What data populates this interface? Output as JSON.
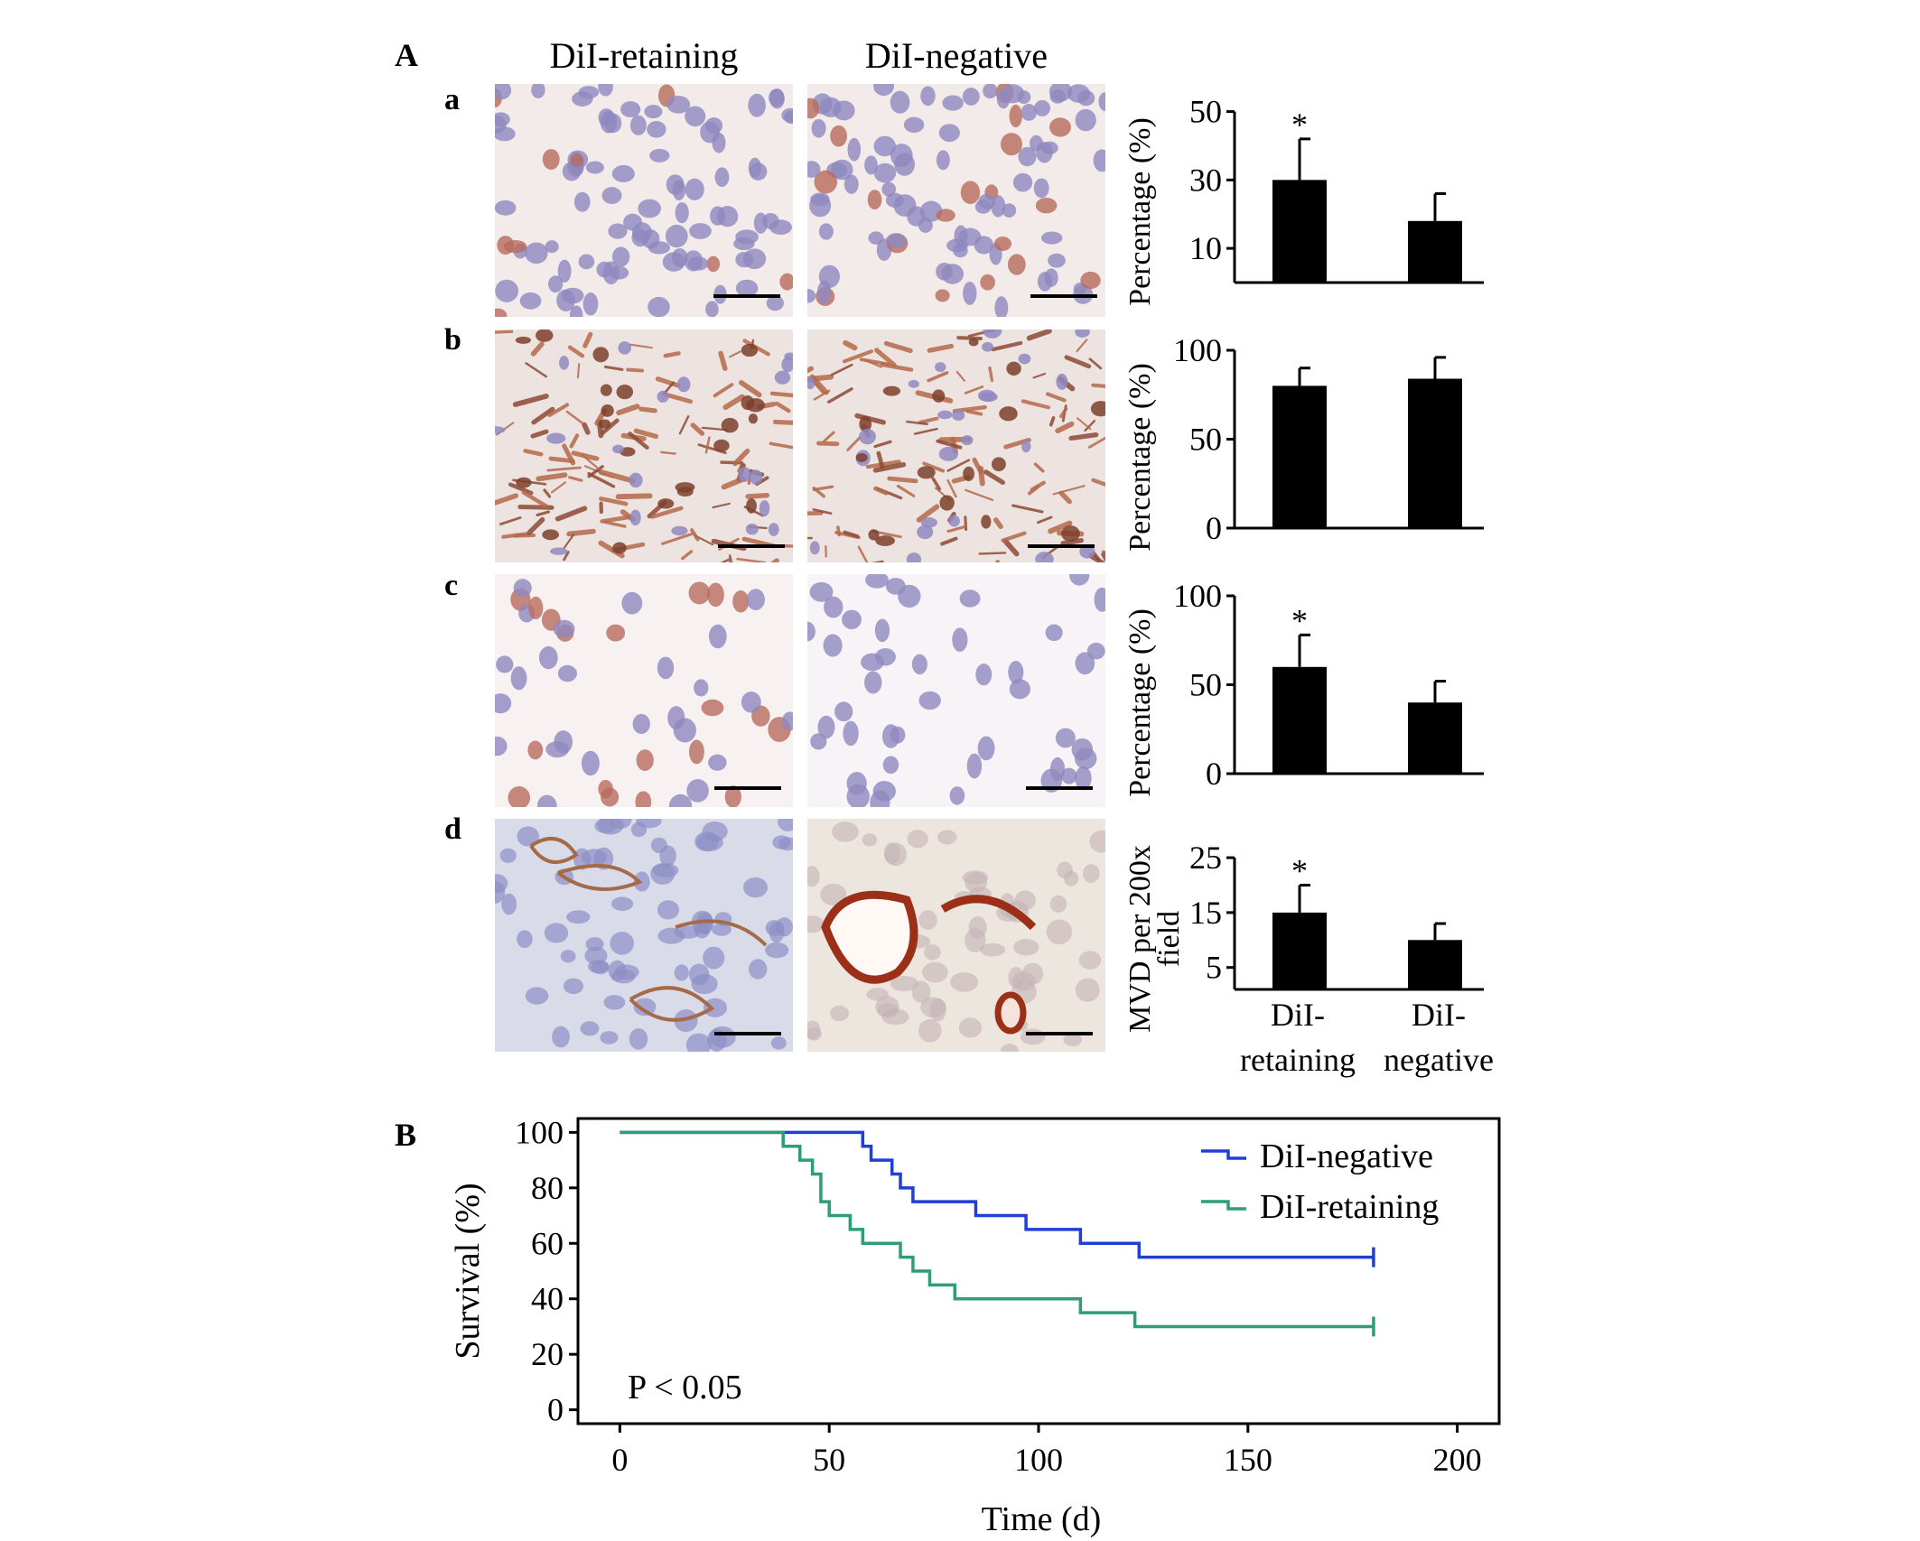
{
  "figure": {
    "panel_A_label": "A",
    "panel_B_label": "B",
    "column_headers": [
      "DiI-retaining",
      "DiI-negative"
    ],
    "row_labels": [
      "a",
      "b",
      "c",
      "d"
    ]
  },
  "colors": {
    "bar": "#000000",
    "dil_negative_line": "#1f3fd6",
    "dil_retaining_line": "#2e9e74",
    "hematoxylin": "#8f88bf",
    "dab": "#b5694a"
  },
  "chart_data": [
    {
      "type": "bar",
      "panel": "a",
      "categories": [
        "DiI-retaining",
        "DiI-negative"
      ],
      "values": [
        30,
        18
      ],
      "errors": [
        12,
        8
      ],
      "significance": [
        "*",
        ""
      ],
      "ylabel": "Percentage (%)",
      "yticks": [
        10,
        30,
        50
      ],
      "ylim": [
        0,
        52
      ]
    },
    {
      "type": "bar",
      "panel": "b",
      "categories": [
        "DiI-retaining",
        "DiI-negative"
      ],
      "values": [
        80,
        84
      ],
      "errors": [
        10,
        12
      ],
      "significance": [
        "",
        ""
      ],
      "ylabel": "Percentage (%)",
      "yticks": [
        0,
        50,
        100
      ],
      "ylim": [
        0,
        100
      ]
    },
    {
      "type": "bar",
      "panel": "c",
      "categories": [
        "DiI-retaining",
        "DiI-negative"
      ],
      "values": [
        60,
        40
      ],
      "errors": [
        18,
        12
      ],
      "significance": [
        "*",
        ""
      ],
      "ylabel": "Percentage (%)",
      "yticks": [
        0,
        50,
        100
      ],
      "ylim": [
        0,
        100
      ]
    },
    {
      "type": "bar",
      "panel": "d",
      "categories": [
        "DiI-retaining",
        "DiI-negative"
      ],
      "category_labels": [
        [
          "DiI-",
          "retaining"
        ],
        [
          "DiI-",
          "negative"
        ]
      ],
      "values": [
        15,
        10
      ],
      "errors": [
        5,
        3
      ],
      "significance": [
        "*",
        ""
      ],
      "ylabel": [
        "MVD per 200x",
        "field"
      ],
      "yticks": [
        5,
        15,
        25
      ],
      "ylim": [
        1,
        26
      ]
    },
    {
      "type": "line",
      "panel": "B",
      "xlabel": "Time (d)",
      "ylabel": "Survival (%)",
      "xlim": [
        -10,
        210
      ],
      "ylim": [
        -5,
        105
      ],
      "xticks": [
        0,
        50,
        100,
        150,
        200
      ],
      "yticks": [
        0,
        20,
        40,
        60,
        80,
        100
      ],
      "annotation": "P < 0.05",
      "legend_position": "top-right",
      "series": [
        {
          "name": "DiI-negative",
          "color": "#1f3fd6",
          "step": true,
          "censor_end": true,
          "x": [
            0,
            58,
            60,
            65,
            67,
            70,
            85,
            97,
            110,
            124,
            180
          ],
          "y": [
            100,
            95,
            90,
            85,
            80,
            75,
            70,
            65,
            60,
            55,
            55
          ]
        },
        {
          "name": "DiI-retaining",
          "color": "#2e9e74",
          "step": true,
          "censor_end": true,
          "x": [
            0,
            39,
            43,
            46,
            48,
            50,
            55,
            58,
            67,
            70,
            74,
            80,
            110,
            123,
            180
          ],
          "y": [
            100,
            95,
            90,
            85,
            75,
            70,
            65,
            60,
            55,
            50,
            45,
            40,
            35,
            30,
            30
          ]
        }
      ]
    }
  ]
}
